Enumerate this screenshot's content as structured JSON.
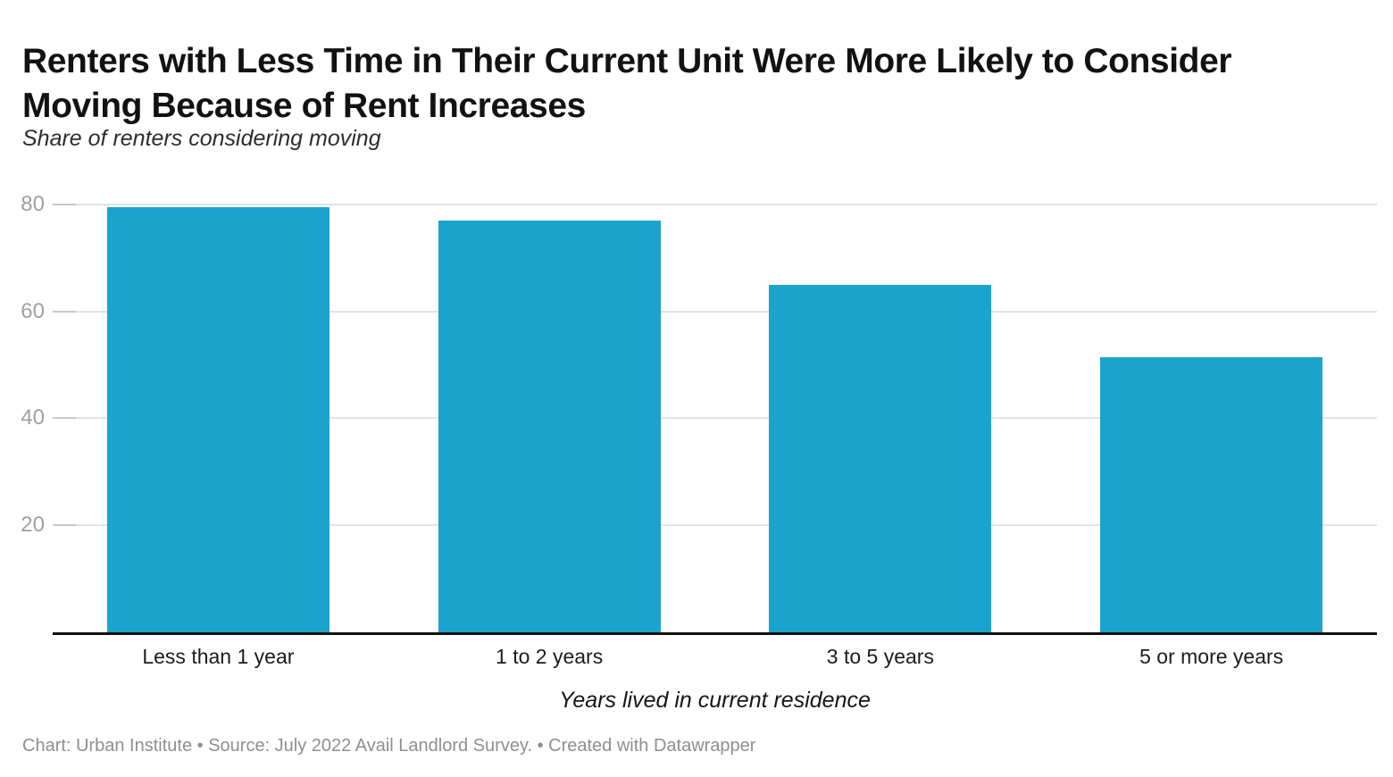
{
  "header": {
    "title_lines": [
      "Renters with Less Time in Their Current Unit Were More Likely to Consider",
      "Moving Because of Rent Increases"
    ],
    "subtitle": "Share of renters considering moving"
  },
  "chart_data": {
    "type": "bar",
    "title": "Renters with Less Time in Their Current Unit Were More Likely to Consider Moving Because of Rent Increases",
    "subtitle": "Share of renters considering moving",
    "categories": [
      "Less than 1 year",
      "1 to 2 years",
      "3 to 5 years",
      "5 or more years"
    ],
    "values": [
      79.5,
      77,
      65,
      51.5
    ],
    "xlabel": "Years lived in current residence",
    "ylabel": "",
    "ylim": [
      0,
      85
    ],
    "yticks": [
      20,
      40,
      60,
      80
    ],
    "grid": "horizontal",
    "legend": "none",
    "bar_color": "#1aa3cd"
  },
  "colors": {
    "bar": "#1aa3cd",
    "gridline": "#e3e3e3",
    "grid_tick": "#c8c8c8",
    "axis_line": "#111111",
    "tick_label": "#a0a0a0",
    "title": "#121212",
    "subtitle": "#2d2d2d",
    "category_label": "#1c1c1c",
    "xlabel": "#161616",
    "footer": "#8f8f8f",
    "background": "#ffffff"
  },
  "footer": {
    "text": "Chart: Urban Institute • Source: July 2022 Avail Landlord Survey. • Created with Datawrapper"
  }
}
